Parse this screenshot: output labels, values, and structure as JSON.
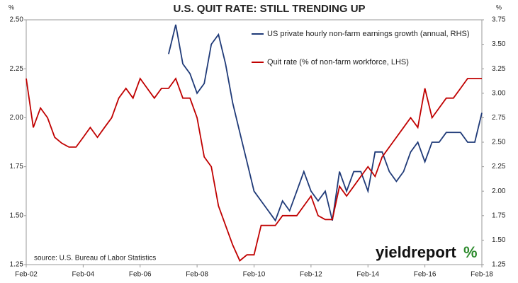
{
  "chart_data": {
    "type": "line",
    "title": "U.S. QUIT RATE: STILL TRENDING UP",
    "y_label": "%",
    "y2_label": "%",
    "source": "source: U.S. Bureau of Labor Statistics",
    "logo": "yieldreport",
    "logo_mark": "%",
    "categories": [
      "Feb-02",
      null,
      null,
      null,
      null,
      null,
      null,
      null,
      "Feb-04",
      null,
      null,
      null,
      null,
      null,
      null,
      null,
      "Feb-06",
      null,
      null,
      null,
      null,
      null,
      null,
      null,
      "Feb-08",
      null,
      null,
      null,
      null,
      null,
      null,
      null,
      "Feb-10",
      null,
      null,
      null,
      null,
      null,
      null,
      null,
      "Feb-12",
      null,
      null,
      null,
      null,
      null,
      null,
      null,
      "Feb-14",
      null,
      null,
      null,
      null,
      null,
      null,
      null,
      "Feb-16",
      null,
      null,
      null,
      null,
      null,
      null,
      null,
      "Feb-18"
    ],
    "ylim": [
      1.25,
      2.5
    ],
    "yticks": [
      1.25,
      {
        "value": 1.5,
        "label": "1.50"
      },
      1.75,
      {
        "value": 2,
        "label": "2.00"
      },
      2.25,
      {
        "value": 2.5,
        "label": "2.50"
      }
    ],
    "y2lim": [
      1.25,
      3.75
    ],
    "y2ticks": [
      1.25,
      {
        "value": 1.5,
        "label": "1.50"
      },
      1.75,
      {
        "value": 2,
        "label": "2.00"
      },
      2.25,
      {
        "value": 2.5,
        "label": "2.50"
      },
      2.75,
      {
        "value": 3,
        "label": "3.00"
      },
      3.25,
      {
        "value": 3.5,
        "label": "3.50"
      },
      3.75
    ],
    "series": [
      {
        "name": "US private hourly non-farm earnings growth (annual, RHS)",
        "color": "#1f3a78",
        "axis": "y2",
        "values": [
          null,
          null,
          null,
          null,
          null,
          null,
          null,
          null,
          null,
          null,
          null,
          null,
          null,
          null,
          null,
          null,
          null,
          null,
          null,
          null,
          3.4,
          3.7,
          3.3,
          3.2,
          3.0,
          3.1,
          3.5,
          3.6,
          3.3,
          2.9,
          2.6,
          2.3,
          2.0,
          1.9,
          1.8,
          1.7,
          1.9,
          1.8,
          2.0,
          2.2,
          2.0,
          1.9,
          2.0,
          1.7,
          2.2,
          2.0,
          2.2,
          2.2,
          2.0,
          2.4,
          2.4,
          2.2,
          2.1,
          2.2,
          2.4,
          2.5,
          2.3,
          2.5,
          2.5,
          2.6,
          2.6,
          2.6,
          2.5,
          2.5,
          2.8
        ]
      },
      {
        "name": "Quit rate (% of non-farm workforce, LHS)",
        "color": "#c00000",
        "values": [
          2.2,
          1.95,
          2.05,
          2.0,
          1.9,
          1.87,
          1.85,
          1.85,
          1.9,
          1.95,
          1.9,
          1.95,
          2.0,
          2.1,
          2.15,
          2.1,
          2.2,
          2.15,
          2.1,
          2.15,
          2.15,
          2.2,
          2.1,
          2.1,
          2.0,
          1.8,
          1.75,
          1.55,
          1.45,
          1.35,
          1.27,
          1.3,
          1.3,
          1.45,
          1.45,
          1.45,
          1.5,
          1.5,
          1.5,
          1.55,
          1.6,
          1.5,
          1.48,
          1.48,
          1.65,
          1.6,
          1.65,
          1.7,
          1.75,
          1.7,
          1.8,
          1.85,
          1.9,
          1.95,
          2.0,
          1.95,
          2.15,
          2.0,
          2.05,
          2.1,
          2.1,
          2.15,
          2.2,
          2.2,
          2.2
        ]
      }
    ]
  }
}
